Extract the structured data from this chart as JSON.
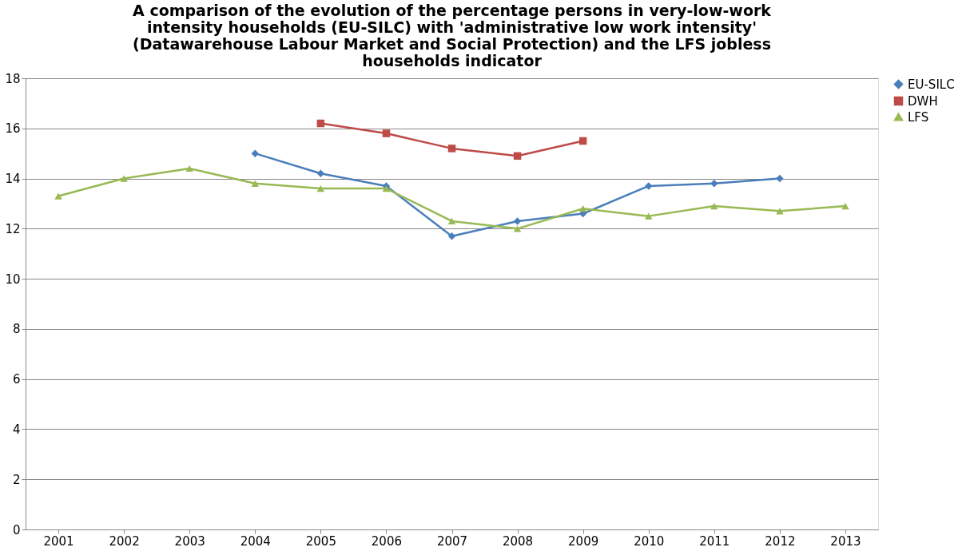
{
  "chart_data": {
    "type": "line",
    "title": "A comparison of the evolution of the percentage persons in very-low-work intensity households (EU-SILC) with 'administrative  low work intensity' (Datawarehouse Labour Market and Social Protection) and the LFS jobless households indicator",
    "categories": [
      "2001",
      "2002",
      "2003",
      "2004",
      "2005",
      "2006",
      "2007",
      "2008",
      "2009",
      "2010",
      "2011",
      "2012",
      "2013"
    ],
    "series": [
      {
        "name": "EU-SILC",
        "color": "#4a7ebb",
        "marker": "diamond",
        "values": [
          null,
          null,
          null,
          15.0,
          14.2,
          13.7,
          11.7,
          12.3,
          12.6,
          13.7,
          13.8,
          14.0,
          null
        ]
      },
      {
        "name": "DWH",
        "color": "#be4b48",
        "marker": "square",
        "values": [
          null,
          null,
          null,
          null,
          16.2,
          15.8,
          15.2,
          14.9,
          15.5,
          null,
          null,
          null,
          null
        ]
      },
      {
        "name": "LFS",
        "color": "#98b954",
        "marker": "triangle",
        "values": [
          13.3,
          14.0,
          14.4,
          13.8,
          13.6,
          13.6,
          12.3,
          12.0,
          12.8,
          12.5,
          12.9,
          12.7,
          12.9
        ]
      }
    ],
    "ylim": [
      0,
      18
    ],
    "yticks": [
      0,
      2,
      4,
      6,
      8,
      10,
      12,
      14,
      16,
      18
    ],
    "grid": "y",
    "legend": "right",
    "line_style": "solid"
  }
}
